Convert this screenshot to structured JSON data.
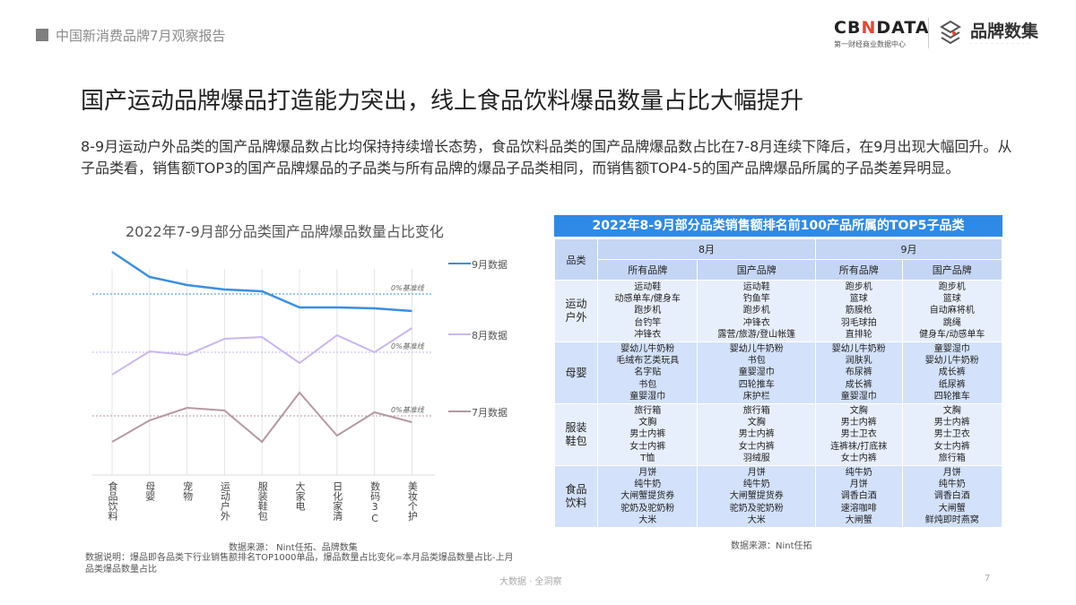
{
  "header": {
    "report_title": "中国新消费品牌7月观察报告",
    "logo_cbndata": "CBNDATA",
    "logo_cbndata_sub": "第一财经商业数据中心",
    "logo_brand": "品牌数集"
  },
  "title": "国产运动品牌爆品打造能力突出，线上食品饮料爆品数量占比大幅提升",
  "description": "8-9月运动户外品类的国产品牌爆品数占比均保持持续增长态势，食品饮料品类的国产品牌爆品数占比在7-8月连续下降后，在9月出现大幅回升。从子品类看，销售额TOP3的国产品牌爆品的子品类与所有品牌的爆品子品类相同，而销售额TOP4-5的国产品牌爆品所属的子品类差异明显。",
  "chart_data": {
    "type": "line",
    "title": "2022年7-9月部分品类国产品牌爆品数量占比变化",
    "categories": [
      "食品饮料",
      "母婴",
      "宠物",
      "运动户外",
      "服装鞋包",
      "大家电",
      "日化家清",
      "数码3C",
      "美妆个护"
    ],
    "baseline_label": "0%基准线",
    "y_axis_labels": false,
    "grid": "vertical",
    "legend": "right",
    "series": [
      {
        "name": "9月数据",
        "color": "#3b8fe0",
        "values": [
          4.7,
          1.9,
          1.0,
          0.5,
          0.3,
          -1.5,
          -1.5,
          -1.6,
          -1.9
        ]
      },
      {
        "name": "8月数据",
        "color": "#c9b6f0",
        "values": [
          -2.5,
          0.1,
          -0.3,
          1.5,
          1.7,
          -1.2,
          1.9,
          0.0,
          2.7
        ]
      },
      {
        "name": "7月数据",
        "color": "#b49aa0",
        "values": [
          -2.9,
          -0.5,
          0.9,
          0.6,
          -2.9,
          2.6,
          -2.2,
          0.4,
          -0.7
        ]
      }
    ]
  },
  "chart_source": "数据来源： Nint任拓、品牌数集",
  "chart_note": "数据说明：爆品即各品类下行业销售额排名TOP1000单品，爆品数量占比变化=本月品类爆品数量占比-上月品类爆品数量占比",
  "table": {
    "title": "2022年8-9月部分品类销售额排名前100产品所属的TOP5子品类",
    "col_category": "品类",
    "months": [
      "8月",
      "9月"
    ],
    "subcols": [
      "所有品牌",
      "国产品牌",
      "所有品牌",
      "国产品牌"
    ],
    "rows": [
      {
        "category": "运动户外",
        "cells": [
          "运动鞋\n动感单车/健身车\n跑步机\n台钓竿\n冲锋衣",
          "运动鞋\n钓鱼竿\n跑步机\n冲锋衣\n露营/旅游/登山帐篷",
          "跑步机\n篮球\n筋膜枪\n羽毛球拍\n直排轮",
          "跑步机\n篮球\n自动麻将机\n跳绳\n健身车/动感单车"
        ]
      },
      {
        "category": "母婴",
        "cells": [
          "婴幼儿牛奶粉\n毛绒布艺类玩具\n名字贴\n书包\n童婴湿巾",
          "婴幼儿牛奶粉\n书包\n童婴湿巾\n四轮推车\n床护栏",
          "婴幼儿牛奶粉\n润肤乳\n布尿裤\n成长裤\n童婴湿巾",
          "童婴湿巾\n婴幼儿牛奶粉\n成长裤\n纸尿裤\n四轮推车"
        ]
      },
      {
        "category": "服装鞋包",
        "cells": [
          "旅行箱\n文胸\n男士内裤\n女士内裤\nT恤",
          "旅行箱\n文胸\n男士内裤\n女士内裤\n羽绒服",
          "文胸\n男士内裤\n男士卫衣\n连裤袜/打底袜\n女士内裤",
          "文胸\n男士内裤\n男士卫衣\n女士内裤\n旅行箱"
        ]
      },
      {
        "category": "食品饮料",
        "cells": [
          "月饼\n纯牛奶\n大闸蟹提货券\n驼奶及驼奶粉\n大米",
          "月饼\n纯牛奶\n大闸蟹提货券\n驼奶及驼奶粉\n大米",
          "纯牛奶\n月饼\n调香白酒\n速溶咖啡\n大闸蟹",
          "月饼\n纯牛奶\n调香白酒\n大闸蟹\n鲜炖即时燕窝"
        ]
      }
    ],
    "source": "数据来源：Nint任拓"
  },
  "footer": {
    "slogan": "大数据 · 全洞察",
    "page": "7"
  }
}
